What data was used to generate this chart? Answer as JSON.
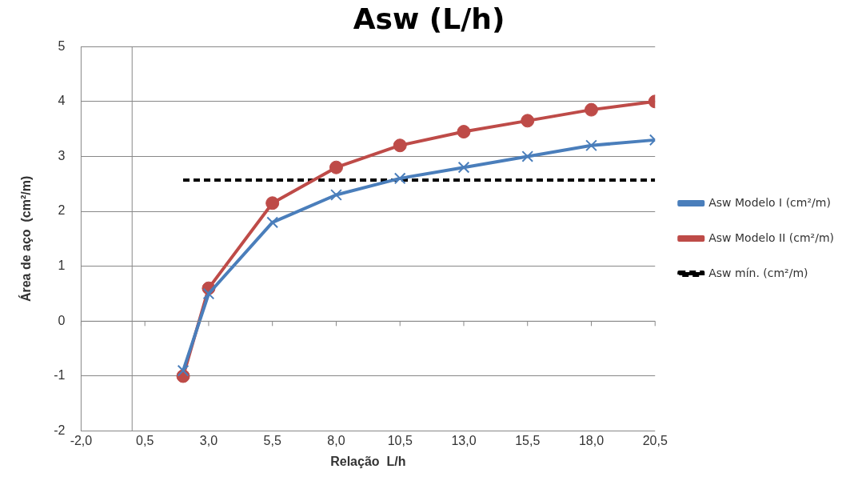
{
  "chart_data": {
    "type": "line",
    "title": "Asw (L/h)",
    "xlabel": "Relação  L/h",
    "ylabel": "Área de aço  (cm²/m)",
    "xlim": [
      -2,
      20.5
    ],
    "xticks": [
      {
        "value": -2,
        "label": "-2,0"
      },
      {
        "value": 0.5,
        "label": "0,5"
      },
      {
        "value": 3,
        "label": "3,0"
      },
      {
        "value": 5.5,
        "label": "5,5"
      },
      {
        "value": 8,
        "label": "8,0"
      },
      {
        "value": 10.5,
        "label": "10,5"
      },
      {
        "value": 13,
        "label": "13,0"
      },
      {
        "value": 15.5,
        "label": "15,5"
      },
      {
        "value": 18,
        "label": "18,0"
      },
      {
        "value": 20.5,
        "label": "20,5"
      }
    ],
    "ylim": [
      -2,
      5
    ],
    "yticks": [
      -2,
      -1,
      0,
      1,
      2,
      3,
      4,
      5
    ],
    "grid": "y",
    "legend": "right",
    "x": [
      2,
      3,
      5.5,
      8,
      10.5,
      13,
      15.5,
      18,
      20.5
    ],
    "series": [
      {
        "name": "Asw Modelo I (cm²/m)",
        "color": "#4a7ebb",
        "marker": "cross",
        "values": [
          -0.9,
          0.5,
          1.8,
          2.3,
          2.6,
          2.8,
          3.0,
          3.2,
          3.3
        ]
      },
      {
        "name": "Asw Modelo II (cm²/m)",
        "color": "#be4b48",
        "marker": "circle",
        "values": [
          -1.0,
          0.6,
          2.15,
          2.8,
          3.2,
          3.45,
          3.65,
          3.85,
          4.0
        ]
      },
      {
        "name": "Asw mín. (cm²/m)",
        "color": "#000000",
        "marker": "none",
        "line_style": "dashed",
        "x": [
          2,
          20.5
        ],
        "values": [
          2.57,
          2.57
        ]
      }
    ]
  }
}
